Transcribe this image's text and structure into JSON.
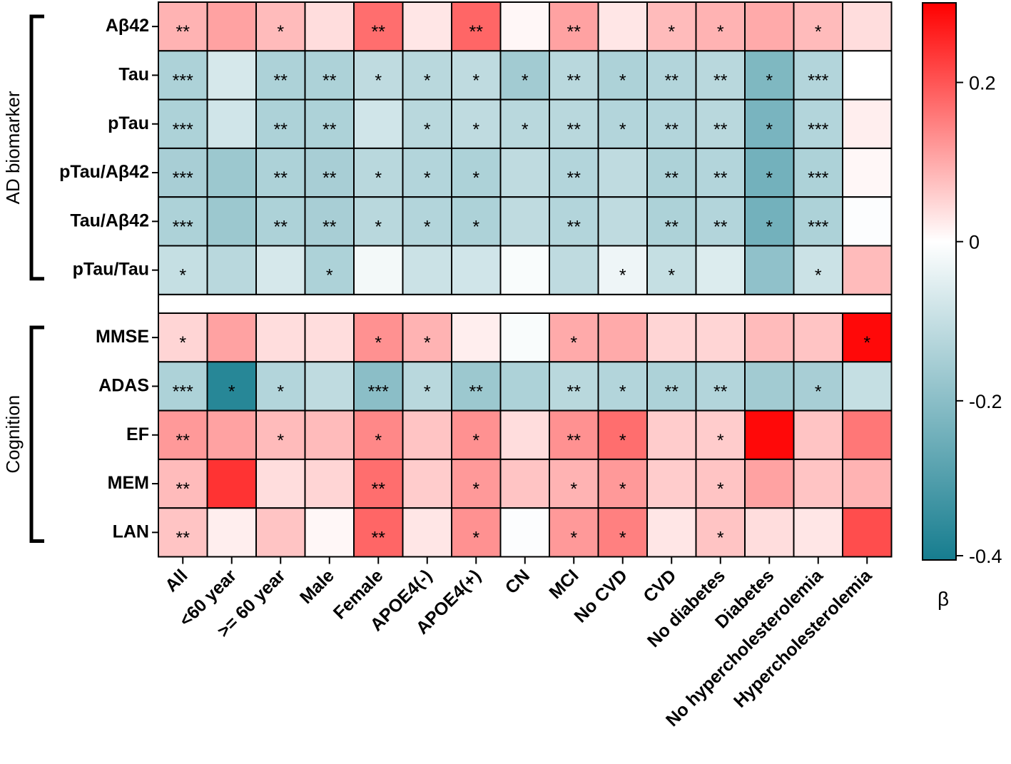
{
  "chart_data": {
    "type": "heatmap",
    "title": "",
    "columns": [
      "All",
      "<60 year",
      ">= 60 year",
      "Male",
      "Female",
      "APOE4(-)",
      "APOE4(+)",
      "CN",
      "MCI",
      "No CVD",
      "CVD",
      "No diabetes",
      "Diabetes",
      "No hypercholesterolemia",
      "Hypercholesterolemia"
    ],
    "groups": [
      {
        "name": "AD biomarker",
        "rows": [
          {
            "label": "Aβ42",
            "values": [
              0.09,
              0.11,
              0.08,
              0.04,
              0.17,
              0.03,
              0.18,
              0.01,
              0.11,
              0.03,
              0.08,
              0.09,
              0.1,
              0.08,
              0.04
            ],
            "sig": [
              "**",
              "",
              "*",
              "",
              "**",
              "",
              "**",
              "",
              "**",
              "",
              "*",
              "*",
              "",
              "*",
              ""
            ]
          },
          {
            "label": "Tau",
            "values": [
              -0.14,
              -0.07,
              -0.14,
              -0.14,
              -0.11,
              -0.12,
              -0.11,
              -0.16,
              -0.12,
              -0.14,
              -0.13,
              -0.12,
              -0.22,
              -0.13,
              0.0
            ],
            "sig": [
              "***",
              "",
              "**",
              "**",
              "*",
              "*",
              "*",
              "*",
              "**",
              "*",
              "**",
              "**",
              "*",
              "***",
              ""
            ]
          },
          {
            "label": "pTau",
            "values": [
              -0.14,
              -0.08,
              -0.14,
              -0.14,
              -0.08,
              -0.12,
              -0.11,
              -0.12,
              -0.12,
              -0.13,
              -0.13,
              -0.12,
              -0.23,
              -0.13,
              0.02
            ],
            "sig": [
              "***",
              "",
              "**",
              "**",
              "",
              "*",
              "*",
              "*",
              "**",
              "*",
              "**",
              "**",
              "*",
              "***",
              ""
            ]
          },
          {
            "label": "pTau/Aβ42",
            "values": [
              -0.15,
              -0.17,
              -0.14,
              -0.15,
              -0.12,
              -0.13,
              -0.14,
              -0.11,
              -0.13,
              -0.11,
              -0.14,
              -0.13,
              -0.24,
              -0.14,
              0.01
            ],
            "sig": [
              "***",
              "",
              "**",
              "**",
              "*",
              "*",
              "*",
              "",
              "**",
              "",
              "**",
              "**",
              "*",
              "***",
              ""
            ]
          },
          {
            "label": "Tau/Aβ42",
            "values": [
              -0.14,
              -0.17,
              -0.14,
              -0.15,
              -0.12,
              -0.13,
              -0.14,
              -0.11,
              -0.13,
              -0.11,
              -0.14,
              -0.13,
              -0.24,
              -0.14,
              -0.005
            ],
            "sig": [
              "***",
              "",
              "**",
              "**",
              "*",
              "*",
              "*",
              "",
              "**",
              "",
              "**",
              "**",
              "*",
              "***",
              ""
            ]
          },
          {
            "label": "pTau/Tau",
            "values": [
              -0.1,
              -0.12,
              -0.07,
              -0.14,
              -0.02,
              -0.09,
              -0.08,
              -0.01,
              -0.11,
              -0.03,
              -0.1,
              -0.06,
              -0.19,
              -0.09,
              0.08
            ],
            "sig": [
              "*",
              "",
              "",
              "*",
              "",
              "",
              "",
              "",
              "",
              "*",
              "*",
              "",
              "",
              "*",
              ""
            ]
          }
        ]
      },
      {
        "name": "Cognition",
        "rows": [
          {
            "label": "MMSE",
            "values": [
              0.05,
              0.11,
              0.04,
              0.04,
              0.13,
              0.09,
              0.02,
              -0.01,
              0.1,
              0.1,
              0.05,
              0.05,
              0.08,
              0.07,
              0.29
            ],
            "sig": [
              "*",
              "",
              "",
              "",
              "*",
              "*",
              "",
              "",
              "*",
              "",
              "",
              "",
              "",
              "",
              "*"
            ]
          },
          {
            "label": "ADAS",
            "values": [
              -0.14,
              -0.37,
              -0.13,
              -0.11,
              -0.2,
              -0.12,
              -0.17,
              -0.14,
              -0.12,
              -0.13,
              -0.14,
              -0.13,
              -0.16,
              -0.15,
              -0.1
            ],
            "sig": [
              "***",
              "*",
              "*",
              "",
              "***",
              "*",
              "**",
              "",
              "**",
              "*",
              "**",
              "**",
              "",
              "*",
              ""
            ]
          },
          {
            "label": "EF",
            "values": [
              0.12,
              0.11,
              0.08,
              0.08,
              0.14,
              0.07,
              0.13,
              0.04,
              0.13,
              0.17,
              0.06,
              0.06,
              0.29,
              0.07,
              0.16
            ],
            "sig": [
              "**",
              "",
              "*",
              "",
              "*",
              "",
              "*",
              "",
              "**",
              "*",
              "",
              "*",
              "",
              "",
              ""
            ]
          },
          {
            "label": "MEM",
            "values": [
              0.08,
              0.24,
              0.04,
              0.05,
              0.17,
              0.06,
              0.12,
              0.07,
              0.09,
              0.12,
              0.06,
              0.07,
              0.11,
              0.07,
              0.09
            ],
            "sig": [
              "**",
              "",
              "",
              "",
              "**",
              "",
              "*",
              "",
              "*",
              "*",
              "",
              "*",
              "",
              "",
              ""
            ]
          },
          {
            "label": "LAN",
            "values": [
              0.07,
              0.02,
              0.07,
              0.01,
              0.18,
              0.03,
              0.13,
              -0.005,
              0.12,
              0.15,
              0.03,
              0.07,
              0.04,
              0.03,
              0.21
            ],
            "sig": [
              "**",
              "",
              "",
              "",
              "**",
              "",
              "*",
              "",
              "*",
              "*",
              "",
              "*",
              "",
              "",
              ""
            ]
          }
        ]
      }
    ],
    "colorbar": {
      "label": "β",
      "min": -0.4,
      "max": 0.3,
      "ticks": [
        0.2,
        0,
        -0.2,
        -0.4
      ],
      "tick_labels": [
        "0.2",
        "0",
        "-0.2",
        "-0.4"
      ],
      "colors": {
        "low": "#167d8f",
        "mid": "#ffffff",
        "high": "#ff0000"
      }
    }
  }
}
